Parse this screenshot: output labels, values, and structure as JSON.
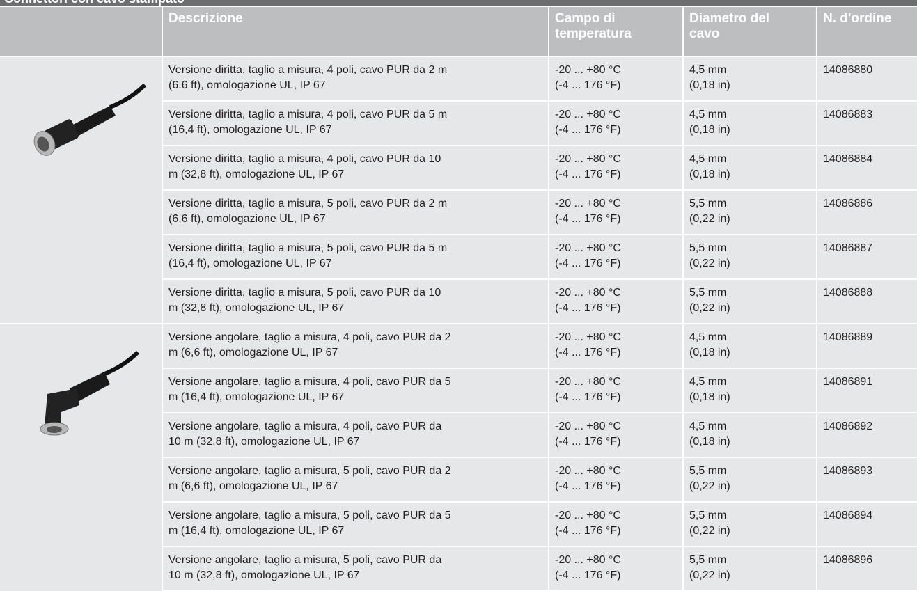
{
  "title": "Connettori con cavo stampato",
  "table": {
    "header": [
      "Descrizione",
      "Campo di\ntemperatura",
      "Diametro del\ncavo",
      "N. d'ordine"
    ],
    "rows": [
      [
        "Versione diritta, taglio a misura, 4 poli, cavo PUR da 2 m\n(6.6 ft), omologazione UL, IP 67",
        "-20 ... +80 °C\n(-4 ... 176 °F)",
        "4,5 mm\n(0,18 in)",
        "14086880"
      ],
      [
        "Versione diritta, taglio a misura, 4 poli, cavo PUR da 5 m\n(16,4 ft), omologazione UL, IP 67",
        "-20 ... +80 °C\n(-4 ... 176 °F)",
        "4,5 mm\n(0,18 in)",
        "14086883"
      ],
      [
        "Versione diritta, taglio a misura, 4 poli, cavo PUR da 10\nm (32,8 ft), omologazione UL, IP 67",
        "-20 ... +80 °C\n(-4 ... 176 °F)",
        "4,5 mm\n(0,18 in)",
        "14086884"
      ],
      [
        "Versione diritta, taglio a misura, 5 poli, cavo PUR da 2 m\n(6,6 ft), omologazione UL, IP 67",
        "-20 ... +80 °C\n(-4 ... 176 °F)",
        "5,5 mm\n(0,22 in)",
        "14086886"
      ],
      [
        "Versione diritta, taglio a misura, 5 poli, cavo PUR da 5 m\n(16,4 ft), omologazione UL, IP 67",
        "-20 ... +80 °C\n(-4 ... 176 °F)",
        "5,5 mm\n(0,22 in)",
        "14086887"
      ],
      [
        "Versione diritta, taglio a misura, 5 poli, cavo PUR da 10\nm (32,8 ft), omologazione UL, IP 67",
        "-20 ... +80 °C\n(-4 ... 176 °F)",
        "5,5 mm\n(0,22 in)",
        "14086888"
      ],
      [
        "Versione angolare, taglio a misura, 4 poli, cavo PUR da 2\nm (6,6 ft), omologazione UL, IP 67",
        "-20 ... +80 °C\n(-4 ... 176 °F)",
        "4,5 mm\n(0,18 in)",
        "14086889"
      ],
      [
        "Versione angolare, taglio a misura, 4 poli, cavo PUR da 5\nm (16,4 ft), omologazione UL, IP 67",
        "-20 ... +80 °C\n(-4 ... 176 °F)",
        "4,5 mm\n(0,18 in)",
        "14086891"
      ],
      [
        "Versione angolare, taglio a misura, 4 poli, cavo PUR da\n10 m (32,8 ft), omologazione UL, IP 67",
        "-20 ... +80 °C\n(-4 ... 176 °F)",
        "4,5 mm\n(0,18 in)",
        "14086892"
      ],
      [
        "Versione angolare, taglio a misura, 5 poli, cavo PUR da 2\nm (6,6 ft), omologazione UL, IP 67",
        "-20 ... +80 °C\n(-4 ... 176 °F)",
        "5,5 mm\n(0,22 in)",
        "14086893"
      ],
      [
        "Versione angolare, taglio a misura, 5 poli, cavo PUR da 5\nm (16,4 ft), omologazione UL, IP 67",
        "-20 ... +80 °C\n(-4 ... 176 °F)",
        "5,5 mm\n(0,22 in)",
        "14086894"
      ],
      [
        "Versione angolare, taglio a misura, 5 poli, cavo PUR da\n10 m (32,8 ft), omologazione UL, IP 67",
        "-20 ... +80 °C\n(-4 ... 176 °F)",
        "5,5 mm\n(0,22 in)",
        "14086896"
      ]
    ]
  }
}
